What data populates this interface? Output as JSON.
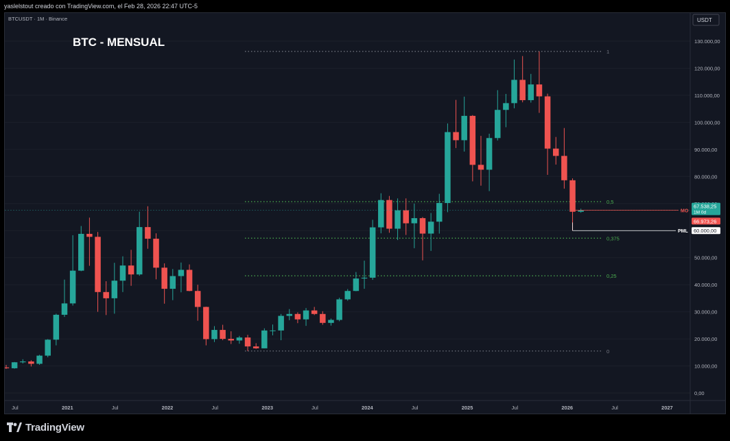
{
  "header": {
    "created_by": "yaslelstout creado con TradingView.com, el Feb 28, 2026 22:47 UTC-5"
  },
  "footer": {
    "brand": "TradingView"
  },
  "colors": {
    "bull": "#26a69a",
    "bear": "#ef5350",
    "background": "#131722",
    "fib": "#4caf50",
    "grid_dots": "#787b86"
  },
  "chart_data": {
    "type": "candlestick",
    "symbol_line": "BTCUSDT · 1M · Binance",
    "title": "BTC - MENSUAL",
    "currency_label": "USDT",
    "y_axis_ticks": [
      "130.000,00",
      "120.000,00",
      "110.000,00",
      "100.000,00",
      "90.000,00",
      "80.000,00",
      "70.000,00",
      "60.000,00",
      "50.000,00",
      "40.000,00",
      "30.000,00",
      "20.000,00",
      "10.000,00",
      "0,00"
    ],
    "y_axis_values": [
      130000,
      120000,
      110000,
      100000,
      90000,
      80000,
      70000,
      60000,
      50000,
      40000,
      30000,
      20000,
      10000,
      0
    ],
    "ylim": [
      0,
      130000
    ],
    "x_axis_labels": [
      {
        "label": "Jul",
        "month": "2020-07"
      },
      {
        "label": "2021",
        "month": "2021-01"
      },
      {
        "label": "Jul",
        "month": "2021-07"
      },
      {
        "label": "2022",
        "month": "2022-01"
      },
      {
        "label": "Jul",
        "month": "2022-07"
      },
      {
        "label": "2023",
        "month": "2023-01"
      },
      {
        "label": "Jul",
        "month": "2023-07"
      },
      {
        "label": "2024",
        "month": "2024-01"
      },
      {
        "label": "Jul",
        "month": "2024-07"
      },
      {
        "label": "2025",
        "month": "2025-01"
      },
      {
        "label": "Jul",
        "month": "2025-07"
      },
      {
        "label": "2026",
        "month": "2026-01"
      },
      {
        "label": "Jul",
        "month": "2026-07"
      },
      {
        "label": "2027",
        "month": "2027-01"
      }
    ],
    "fib_levels": [
      {
        "label": "1",
        "price": 126200,
        "color": "#787b86"
      },
      {
        "label": "0,5",
        "price": 70700,
        "color": "#4caf50"
      },
      {
        "label": "0,375",
        "price": 57200,
        "color": "#4caf50"
      },
      {
        "label": "0,25",
        "price": 43300,
        "color": "#4caf50"
      },
      {
        "label": "0",
        "price": 15500,
        "color": "#787b86"
      }
    ],
    "markers": [
      {
        "label": "MO",
        "price": 67500,
        "color": "#ef5350"
      },
      {
        "label": "PML",
        "price": 60000,
        "color": "#ffffff"
      }
    ],
    "price_labels": [
      {
        "text": "67.538,25",
        "sub": "1M 0d",
        "price": 68000,
        "bg": "#26a69a"
      },
      {
        "text": "66.973,26",
        "price": 63500,
        "bg": "#ef5350"
      },
      {
        "text": "60.000,00",
        "price": 60000,
        "bg": "#ffffff"
      }
    ],
    "candles": [
      {
        "month": "2020-06",
        "o": 9450,
        "h": 10400,
        "l": 8900,
        "c": 9140
      },
      {
        "month": "2020-07",
        "o": 9140,
        "h": 11450,
        "l": 8980,
        "c": 11350
      },
      {
        "month": "2020-08",
        "o": 11350,
        "h": 12470,
        "l": 10900,
        "c": 11650
      },
      {
        "month": "2020-09",
        "o": 11650,
        "h": 12100,
        "l": 9800,
        "c": 10780
      },
      {
        "month": "2020-10",
        "o": 10780,
        "h": 14100,
        "l": 10400,
        "c": 13800
      },
      {
        "month": "2020-11",
        "o": 13800,
        "h": 19900,
        "l": 13200,
        "c": 19700
      },
      {
        "month": "2020-12",
        "o": 19700,
        "h": 29300,
        "l": 17600,
        "c": 28900
      },
      {
        "month": "2021-01",
        "o": 28900,
        "h": 41900,
        "l": 28100,
        "c": 33100
      },
      {
        "month": "2021-02",
        "o": 33100,
        "h": 58300,
        "l": 32300,
        "c": 45200
      },
      {
        "month": "2021-03",
        "o": 45200,
        "h": 61700,
        "l": 45000,
        "c": 58800
      },
      {
        "month": "2021-04",
        "o": 58800,
        "h": 64800,
        "l": 47000,
        "c": 57700
      },
      {
        "month": "2021-05",
        "o": 57700,
        "h": 59500,
        "l": 30000,
        "c": 37300
      },
      {
        "month": "2021-06",
        "o": 37300,
        "h": 41300,
        "l": 28800,
        "c": 35000
      },
      {
        "month": "2021-07",
        "o": 35000,
        "h": 48100,
        "l": 29300,
        "c": 41500
      },
      {
        "month": "2021-08",
        "o": 41500,
        "h": 50500,
        "l": 37300,
        "c": 47100
      },
      {
        "month": "2021-09",
        "o": 47100,
        "h": 52900,
        "l": 39600,
        "c": 43800
      },
      {
        "month": "2021-10",
        "o": 43800,
        "h": 67000,
        "l": 43300,
        "c": 61300
      },
      {
        "month": "2021-11",
        "o": 61300,
        "h": 69000,
        "l": 53300,
        "c": 57000
      },
      {
        "month": "2021-12",
        "o": 57000,
        "h": 59000,
        "l": 42000,
        "c": 46300
      },
      {
        "month": "2022-01",
        "o": 46300,
        "h": 47900,
        "l": 33000,
        "c": 38500
      },
      {
        "month": "2022-02",
        "o": 38500,
        "h": 45800,
        "l": 34300,
        "c": 43200
      },
      {
        "month": "2022-03",
        "o": 43200,
        "h": 48200,
        "l": 37200,
        "c": 45500
      },
      {
        "month": "2022-04",
        "o": 45500,
        "h": 47500,
        "l": 37600,
        "c": 37700
      },
      {
        "month": "2022-05",
        "o": 37700,
        "h": 40000,
        "l": 26700,
        "c": 31800
      },
      {
        "month": "2022-06",
        "o": 31800,
        "h": 31900,
        "l": 17600,
        "c": 19900
      },
      {
        "month": "2022-07",
        "o": 19900,
        "h": 24700,
        "l": 18800,
        "c": 23300
      },
      {
        "month": "2022-08",
        "o": 23300,
        "h": 25200,
        "l": 19500,
        "c": 20000
      },
      {
        "month": "2022-09",
        "o": 20000,
        "h": 22800,
        "l": 18100,
        "c": 19400
      },
      {
        "month": "2022-10",
        "o": 19400,
        "h": 21100,
        "l": 18200,
        "c": 20500
      },
      {
        "month": "2022-11",
        "o": 20500,
        "h": 21500,
        "l": 15500,
        "c": 17200
      },
      {
        "month": "2022-12",
        "o": 17200,
        "h": 18400,
        "l": 16300,
        "c": 16500
      },
      {
        "month": "2023-01",
        "o": 16500,
        "h": 23900,
        "l": 16500,
        "c": 23100
      },
      {
        "month": "2023-02",
        "o": 23100,
        "h": 25300,
        "l": 21300,
        "c": 23100
      },
      {
        "month": "2023-03",
        "o": 23100,
        "h": 29200,
        "l": 19500,
        "c": 28500
      },
      {
        "month": "2023-04",
        "o": 28500,
        "h": 31000,
        "l": 26900,
        "c": 29200
      },
      {
        "month": "2023-05",
        "o": 29200,
        "h": 29800,
        "l": 25800,
        "c": 27200
      },
      {
        "month": "2023-06",
        "o": 27200,
        "h": 31400,
        "l": 24800,
        "c": 30500
      },
      {
        "month": "2023-07",
        "o": 30500,
        "h": 31800,
        "l": 28800,
        "c": 29200
      },
      {
        "month": "2023-08",
        "o": 29200,
        "h": 30200,
        "l": 25200,
        "c": 25900
      },
      {
        "month": "2023-09",
        "o": 25900,
        "h": 27500,
        "l": 24900,
        "c": 27000
      },
      {
        "month": "2023-10",
        "o": 27000,
        "h": 35200,
        "l": 26500,
        "c": 34600
      },
      {
        "month": "2023-11",
        "o": 34600,
        "h": 38400,
        "l": 34100,
        "c": 37700
      },
      {
        "month": "2023-12",
        "o": 37700,
        "h": 44700,
        "l": 37600,
        "c": 42300
      },
      {
        "month": "2024-01",
        "o": 42300,
        "h": 48900,
        "l": 38500,
        "c": 42600
      },
      {
        "month": "2024-02",
        "o": 42600,
        "h": 64000,
        "l": 41800,
        "c": 61200
      },
      {
        "month": "2024-03",
        "o": 61200,
        "h": 73800,
        "l": 59000,
        "c": 71300
      },
      {
        "month": "2024-04",
        "o": 71300,
        "h": 72800,
        "l": 59200,
        "c": 60700
      },
      {
        "month": "2024-05",
        "o": 60700,
        "h": 71900,
        "l": 56500,
        "c": 67500
      },
      {
        "month": "2024-06",
        "o": 67500,
        "h": 71900,
        "l": 58400,
        "c": 62700
      },
      {
        "month": "2024-07",
        "o": 62700,
        "h": 70000,
        "l": 53500,
        "c": 64600
      },
      {
        "month": "2024-08",
        "o": 64600,
        "h": 65000,
        "l": 49000,
        "c": 58900
      },
      {
        "month": "2024-09",
        "o": 58900,
        "h": 66500,
        "l": 52500,
        "c": 63300
      },
      {
        "month": "2024-10",
        "o": 63300,
        "h": 73600,
        "l": 58900,
        "c": 70200
      },
      {
        "month": "2024-11",
        "o": 70200,
        "h": 99600,
        "l": 66800,
        "c": 96400
      },
      {
        "month": "2024-12",
        "o": 96400,
        "h": 108300,
        "l": 90500,
        "c": 93400
      },
      {
        "month": "2025-01",
        "o": 93400,
        "h": 109500,
        "l": 89200,
        "c": 102400
      },
      {
        "month": "2025-02",
        "o": 102400,
        "h": 102700,
        "l": 78200,
        "c": 84300
      },
      {
        "month": "2025-03",
        "o": 84300,
        "h": 95000,
        "l": 76600,
        "c": 82500
      },
      {
        "month": "2025-04",
        "o": 82500,
        "h": 95800,
        "l": 74600,
        "c": 94200
      },
      {
        "month": "2025-05",
        "o": 94200,
        "h": 111900,
        "l": 93300,
        "c": 104600
      },
      {
        "month": "2025-06",
        "o": 104600,
        "h": 110500,
        "l": 98200,
        "c": 107100
      },
      {
        "month": "2025-07",
        "o": 107100,
        "h": 123200,
        "l": 105200,
        "c": 115700
      },
      {
        "month": "2025-08",
        "o": 115700,
        "h": 124500,
        "l": 107400,
        "c": 108200
      },
      {
        "month": "2025-09",
        "o": 108200,
        "h": 117900,
        "l": 107300,
        "c": 114000
      },
      {
        "month": "2025-10",
        "o": 114000,
        "h": 126200,
        "l": 103500,
        "c": 109600
      },
      {
        "month": "2025-11",
        "o": 109600,
        "h": 110600,
        "l": 80600,
        "c": 90300
      },
      {
        "month": "2025-12",
        "o": 90300,
        "h": 94600,
        "l": 84400,
        "c": 87600
      },
      {
        "month": "2026-01",
        "o": 87600,
        "h": 97900,
        "l": 75500,
        "c": 78600
      },
      {
        "month": "2026-02",
        "o": 78600,
        "h": 79300,
        "l": 60000,
        "c": 66970
      },
      {
        "month": "2026-03",
        "o": 66970,
        "h": 68100,
        "l": 66600,
        "c": 67540
      }
    ]
  }
}
